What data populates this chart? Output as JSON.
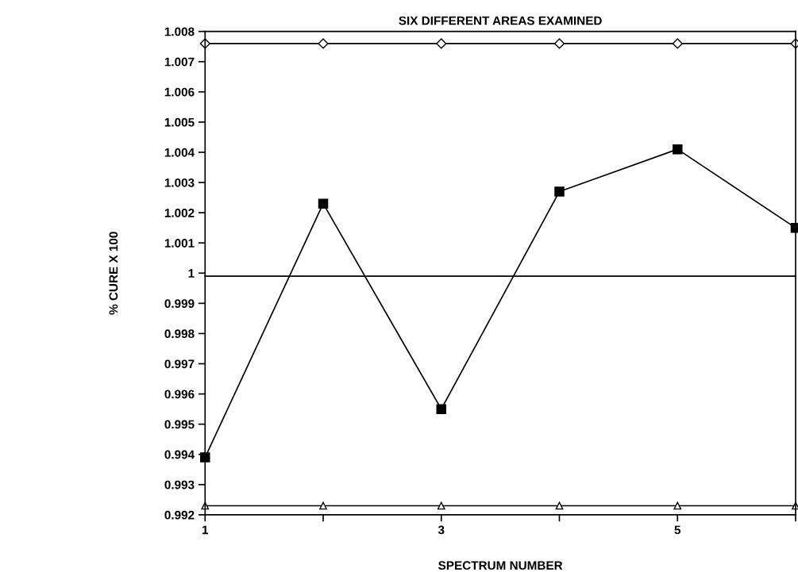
{
  "chart_data": {
    "type": "line",
    "title": "SIX DIFFERENT AREAS EXAMINED",
    "xlabel": "SPECTRUM NUMBER",
    "ylabel": "% CURE X 100",
    "x": [
      1,
      2,
      3,
      4,
      5,
      6
    ],
    "series": [
      {
        "color": "#000000",
        "marker": "diamond",
        "values": [
          1.0076,
          1.0076,
          1.0076,
          1.0076,
          1.0076,
          1.0076
        ]
      },
      {
        "color": "#000000",
        "marker": "square",
        "values": [
          0.9939,
          1.0023,
          0.9955,
          1.0027,
          1.0041,
          1.0015
        ]
      },
      {
        "color": "#000000",
        "marker": "none",
        "values": [
          0.9999,
          0.9999,
          0.9999,
          0.9999,
          0.9999,
          0.9999
        ]
      },
      {
        "color": "#000000",
        "marker": "triangle",
        "values": [
          0.9923,
          0.9923,
          0.9923,
          0.9923,
          0.9923,
          0.9923
        ]
      }
    ],
    "xlim": [
      1,
      6
    ],
    "xticks": [
      1,
      {
        "value": 2,
        "label": null
      },
      3,
      {
        "value": 4,
        "label": null
      },
      5,
      {
        "value": 6,
        "label": null
      }
    ],
    "ylim": [
      0.992,
      1.008
    ],
    "yticks": [
      0.992,
      0.993,
      0.994,
      0.995,
      0.996,
      0.997,
      0.998,
      0.999,
      1,
      1.001,
      1.002,
      1.003,
      1.004,
      1.005,
      1.006,
      1.007,
      1.008
    ],
    "grid": false,
    "legend": false,
    "line_style": "solid"
  }
}
